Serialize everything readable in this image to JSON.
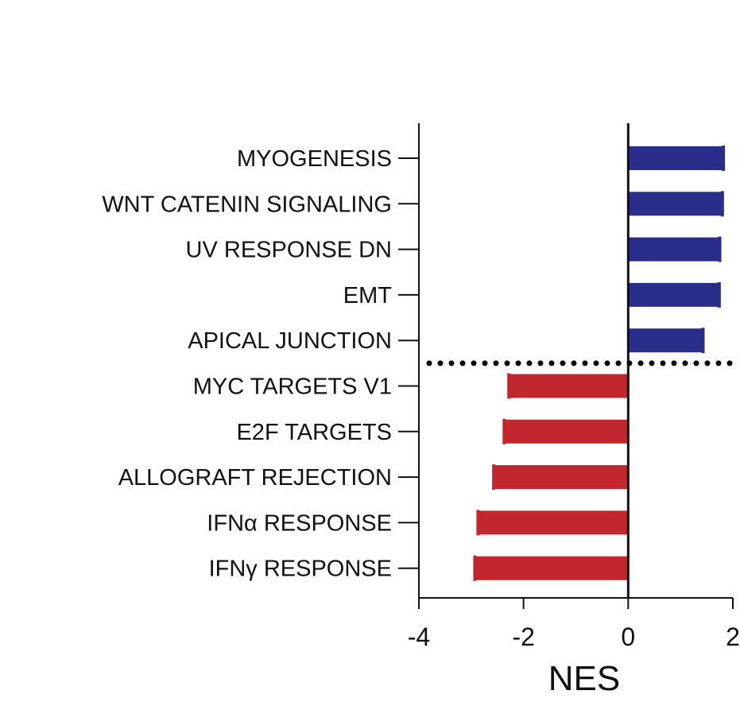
{
  "chart_data": {
    "type": "bar",
    "orientation": "horizontal",
    "title": "",
    "xlabel": "NES",
    "ylabel": "",
    "xlim": [
      -4,
      2
    ],
    "xticks": [
      -4,
      -2,
      0,
      2
    ],
    "xtick_labels": [
      "-4",
      "-2",
      "0",
      "2"
    ],
    "grid": false,
    "legend": "none",
    "categories": [
      "MYOGENESIS",
      "WNT CATENIN SIGNALING",
      "UV RESPONSE DN",
      "EMT",
      "APICAL JUNCTION",
      "MYC TARGETS V1",
      "E2F TARGETS",
      "ALLOGRAFT REJECTION",
      "IFNα RESPONSE",
      "IFNγ RESPONSE"
    ],
    "values": [
      1.82,
      1.8,
      1.75,
      1.74,
      1.43,
      -2.28,
      -2.37,
      -2.57,
      -2.87,
      -2.93
    ],
    "colors": {
      "positive": "#2b2d8a",
      "negative": "#c1282d",
      "axis": "#111111",
      "separator": "#000000"
    },
    "separator_after_index": 4,
    "separator_style": "dotted"
  }
}
